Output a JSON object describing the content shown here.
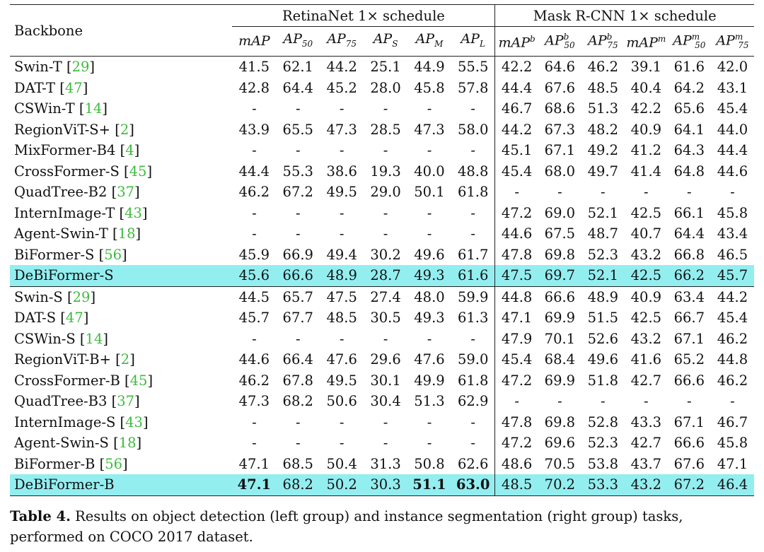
{
  "header": {
    "backbone": "Backbone",
    "retina_group": "RetinaNet 1× schedule",
    "mask_group": "Mask R-CNN 1× schedule",
    "retina_cols": [
      {
        "base": "mAP",
        "sub": "",
        "sup": ""
      },
      {
        "base": "AP",
        "sub": "50",
        "sup": ""
      },
      {
        "base": "AP",
        "sub": "75",
        "sup": ""
      },
      {
        "base": "AP",
        "sub": "S",
        "sup": ""
      },
      {
        "base": "AP",
        "sub": "M",
        "sup": ""
      },
      {
        "base": "AP",
        "sub": "L",
        "sup": ""
      }
    ],
    "mask_cols": [
      {
        "base": "mAP",
        "sub": "",
        "sup": "b"
      },
      {
        "base": "AP",
        "sub": "50",
        "sup": "b"
      },
      {
        "base": "AP",
        "sub": "75",
        "sup": "b"
      },
      {
        "base": "mAP",
        "sub": "",
        "sup": "m"
      },
      {
        "base": "AP",
        "sub": "50",
        "sup": "m"
      },
      {
        "base": "AP",
        "sub": "75",
        "sup": "m"
      }
    ]
  },
  "rows": [
    {
      "name": "Swin-T",
      "ref": "29",
      "values": [
        "41.5",
        "62.1",
        "44.2",
        "25.1",
        "44.9",
        "55.5",
        "42.2",
        "64.6",
        "46.2",
        "39.1",
        "61.6",
        "42.0"
      ]
    },
    {
      "name": "DAT-T",
      "ref": "47",
      "values": [
        "42.8",
        "64.4",
        "45.2",
        "28.0",
        "45.8",
        "57.8",
        "44.4",
        "67.6",
        "48.5",
        "40.4",
        "64.2",
        "43.1"
      ]
    },
    {
      "name": "CSWin-T",
      "ref": "14",
      "values": [
        "-",
        "-",
        "-",
        "-",
        "-",
        "-",
        "46.7",
        "68.6",
        "51.3",
        "42.2",
        "65.6",
        "45.4"
      ]
    },
    {
      "name": "RegionViT-S+",
      "ref": "2",
      "values": [
        "43.9",
        "65.5",
        "47.3",
        "28.5",
        "47.3",
        "58.0",
        "44.2",
        "67.3",
        "48.2",
        "40.9",
        "64.1",
        "44.0"
      ]
    },
    {
      "name": "MixFormer-B4",
      "ref": "4",
      "values": [
        "-",
        "-",
        "-",
        "-",
        "-",
        "-",
        "45.1",
        "67.1",
        "49.2",
        "41.2",
        "64.3",
        "44.4"
      ]
    },
    {
      "name": "CrossFormer-S",
      "ref": "45",
      "values": [
        "44.4",
        "55.3",
        "38.6",
        "19.3",
        "40.0",
        "48.8",
        "45.4",
        "68.0",
        "49.7",
        "41.4",
        "64.8",
        "44.6"
      ]
    },
    {
      "name": "QuadTree-B2",
      "ref": "37",
      "values": [
        "46.2",
        "67.2",
        "49.5",
        "29.0",
        "50.1",
        "61.8",
        "-",
        "-",
        "-",
        "-",
        "-",
        "-"
      ]
    },
    {
      "name": "InternImage-T",
      "ref": "43",
      "values": [
        "-",
        "-",
        "-",
        "-",
        "-",
        "-",
        "47.2",
        "69.0",
        "52.1",
        "42.5",
        "66.1",
        "45.8"
      ]
    },
    {
      "name": "Agent-Swin-T",
      "ref": "18",
      "values": [
        "-",
        "-",
        "-",
        "-",
        "-",
        "-",
        "44.6",
        "67.5",
        "48.7",
        "40.7",
        "64.4",
        "43.4"
      ]
    },
    {
      "name": "BiFormer-S",
      "ref": "56",
      "values": [
        "45.9",
        "66.9",
        "49.4",
        "30.2",
        "49.6",
        "61.7",
        "47.8",
        "69.8",
        "52.3",
        "43.2",
        "66.8",
        "46.5"
      ]
    },
    {
      "name": "DeBiFormer-S",
      "ref": "",
      "highlight": true,
      "values": [
        "45.6",
        "66.6",
        "48.9",
        "28.7",
        "49.3",
        "61.6",
        "47.5",
        "69.7",
        "52.1",
        "42.5",
        "66.2",
        "45.7"
      ]
    },
    {
      "name": "Swin-S",
      "ref": "29",
      "group_start": true,
      "values": [
        "44.5",
        "65.7",
        "47.5",
        "27.4",
        "48.0",
        "59.9",
        "44.8",
        "66.6",
        "48.9",
        "40.9",
        "63.4",
        "44.2"
      ]
    },
    {
      "name": "DAT-S",
      "ref": "47",
      "values": [
        "45.7",
        "67.7",
        "48.5",
        "30.5",
        "49.3",
        "61.3",
        "47.1",
        "69.9",
        "51.5",
        "42.5",
        "66.7",
        "45.4"
      ]
    },
    {
      "name": "CSWin-S",
      "ref": "14",
      "values": [
        "-",
        "-",
        "-",
        "-",
        "-",
        "-",
        "47.9",
        "70.1",
        "52.6",
        "43.2",
        "67.1",
        "46.2"
      ]
    },
    {
      "name": "RegionViT-B+",
      "ref": "2",
      "values": [
        "44.6",
        "66.4",
        "47.6",
        "29.6",
        "47.6",
        "59.0",
        "45.4",
        "68.4",
        "49.6",
        "41.6",
        "65.2",
        "44.8"
      ]
    },
    {
      "name": "CrossFormer-B",
      "ref": "45",
      "values": [
        "46.2",
        "67.8",
        "49.5",
        "30.1",
        "49.9",
        "61.8",
        "47.2",
        "69.9",
        "51.8",
        "42.7",
        "66.6",
        "46.2"
      ]
    },
    {
      "name": "QuadTree-B3",
      "ref": "37",
      "values": [
        "47.3",
        "68.2",
        "50.6",
        "30.4",
        "51.3",
        "62.9",
        "-",
        "-",
        "-",
        "-",
        "-",
        "-"
      ]
    },
    {
      "name": "InternImage-S",
      "ref": "43",
      "values": [
        "-",
        "-",
        "-",
        "-",
        "-",
        "-",
        "47.8",
        "69.8",
        "52.8",
        "43.3",
        "67.1",
        "46.7"
      ]
    },
    {
      "name": "Agent-Swin-S",
      "ref": "18",
      "values": [
        "-",
        "-",
        "-",
        "-",
        "-",
        "-",
        "47.2",
        "69.6",
        "52.3",
        "42.7",
        "66.6",
        "45.8"
      ]
    },
    {
      "name": "BiFormer-B",
      "ref": "56",
      "values": [
        "47.1",
        "68.5",
        "50.4",
        "31.3",
        "50.8",
        "62.6",
        "48.6",
        "70.5",
        "53.8",
        "43.7",
        "67.6",
        "47.1"
      ]
    },
    {
      "name": "DeBiFormer-B",
      "ref": "",
      "highlight": true,
      "last": true,
      "bold_indices": [
        0,
        4,
        5
      ],
      "values": [
        "47.1",
        "68.2",
        "50.2",
        "30.3",
        "51.1",
        "63.0",
        "48.5",
        "70.2",
        "53.3",
        "43.2",
        "67.2",
        "46.4"
      ]
    }
  ],
  "caption": {
    "label": "Table 4.",
    "text": " Results on object detection (left group) and instance segmentation (right group) tasks, performed on COCO 2017 dataset."
  },
  "colors": {
    "highlight": "#93eef0",
    "reference": "#3dbb3d"
  }
}
